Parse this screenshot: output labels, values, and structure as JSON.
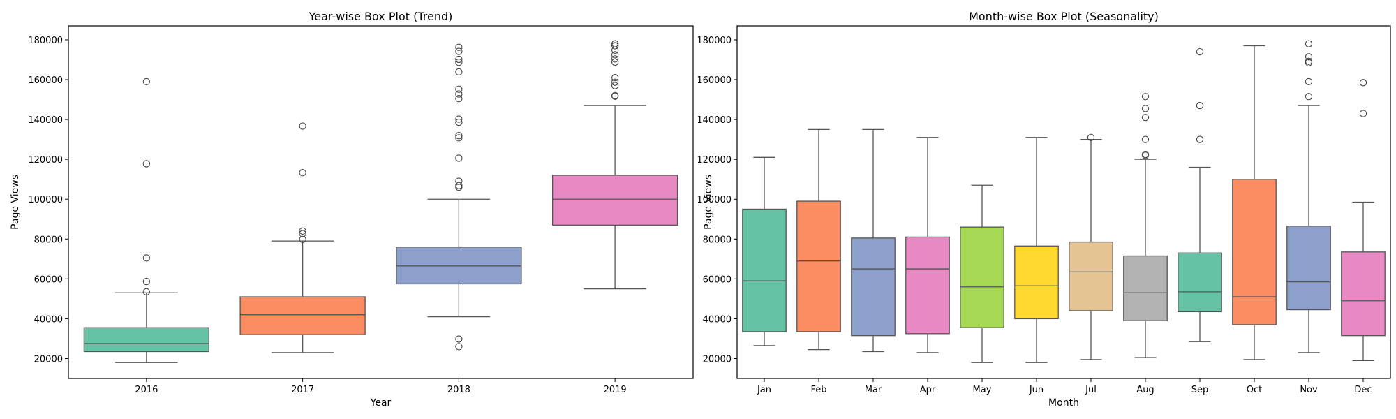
{
  "chart_data": [
    {
      "type": "box",
      "title": "Year-wise Box Plot (Trend)",
      "xlabel": "Year",
      "ylabel": "Page Views",
      "ylim": [
        10000,
        187000
      ],
      "yticks": [
        20000,
        40000,
        60000,
        80000,
        100000,
        120000,
        140000,
        160000,
        180000
      ],
      "ytick_labels": [
        "20000",
        "40000",
        "60000",
        "80000",
        "100000",
        "120000",
        "140000",
        "160000",
        "180000"
      ],
      "categories": [
        "2016",
        "2017",
        "2018",
        "2019"
      ],
      "boxes": [
        {
          "whislo": 18000,
          "q1": 23500,
          "med": 27500,
          "q3": 35500,
          "whishi": 53000,
          "fliers": [
            53500,
            58700,
            70500,
            117800,
            159000
          ],
          "color": "#66c2a5"
        },
        {
          "whislo": 23000,
          "q1": 32000,
          "med": 42000,
          "q3": 51000,
          "whishi": 79000,
          "fliers": [
            79800,
            82700,
            84000,
            113300,
            136700
          ],
          "color": "#fc8d62"
        },
        {
          "whislo": 41000,
          "q1": 57500,
          "med": 66500,
          "q3": 76000,
          "whishi": 100000,
          "fliers": [
            26000,
            29800,
            106000,
            106800,
            109000,
            120600,
            130800,
            131900,
            138600,
            140200,
            150500,
            152800,
            155200,
            163900,
            168700,
            170200,
            174200,
            176200
          ],
          "color": "#8da0cb"
        },
        {
          "whislo": 55000,
          "q1": 87000,
          "med": 100000,
          "q3": 112000,
          "whishi": 147000,
          "fliers": [
            151700,
            152000,
            157000,
            158700,
            161000,
            168800,
            170400,
            172500,
            174800,
            177000,
            178000
          ],
          "color": "#e78ac3"
        }
      ]
    },
    {
      "type": "box",
      "title": "Month-wise Box Plot (Seasonality)",
      "xlabel": "Month",
      "ylabel": "Page Views",
      "ylim": [
        10000,
        187000
      ],
      "yticks": [
        20000,
        40000,
        60000,
        80000,
        100000,
        120000,
        140000,
        160000,
        180000
      ],
      "ytick_labels": [
        "20000",
        "40000",
        "60000",
        "80000",
        "100000",
        "120000",
        "140000",
        "160000",
        "180000"
      ],
      "categories": [
        "Jan",
        "Feb",
        "Mar",
        "Apr",
        "May",
        "Jun",
        "Jul",
        "Aug",
        "Sep",
        "Oct",
        "Nov",
        "Dec"
      ],
      "boxes": [
        {
          "whislo": 26500,
          "q1": 33500,
          "med": 59000,
          "q3": 95000,
          "whishi": 121000,
          "fliers": [],
          "color": "#66c2a5"
        },
        {
          "whislo": 24500,
          "q1": 33500,
          "med": 69000,
          "q3": 99000,
          "whishi": 135000,
          "fliers": [],
          "color": "#fc8d62"
        },
        {
          "whislo": 23500,
          "q1": 31500,
          "med": 65000,
          "q3": 80500,
          "whishi": 135000,
          "fliers": [],
          "color": "#8da0cb"
        },
        {
          "whislo": 23000,
          "q1": 32500,
          "med": 65000,
          "q3": 81000,
          "whishi": 131000,
          "fliers": [],
          "color": "#e78ac3"
        },
        {
          "whislo": 18000,
          "q1": 35500,
          "med": 56000,
          "q3": 86000,
          "whishi": 107000,
          "fliers": [],
          "color": "#a6d854"
        },
        {
          "whislo": 18000,
          "q1": 40000,
          "med": 56500,
          "q3": 76500,
          "whishi": 131000,
          "fliers": [],
          "color": "#ffd92f"
        },
        {
          "whislo": 19500,
          "q1": 44000,
          "med": 63500,
          "q3": 78500,
          "whishi": 130000,
          "fliers": [
            131000
          ],
          "color": "#e5c494"
        },
        {
          "whislo": 20500,
          "q1": 39000,
          "med": 53000,
          "q3": 71500,
          "whishi": 120000,
          "fliers": [
            122000,
            122500,
            130000,
            141000,
            145500,
            151500
          ],
          "color": "#b3b3b3"
        },
        {
          "whislo": 28500,
          "q1": 43500,
          "med": 53500,
          "q3": 73000,
          "whishi": 116000,
          "fliers": [
            130000,
            147000,
            174000
          ],
          "color": "#66c2a5"
        },
        {
          "whislo": 19500,
          "q1": 37000,
          "med": 51000,
          "q3": 110000,
          "whishi": 177000,
          "fliers": [],
          "color": "#fc8d62"
        },
        {
          "whislo": 23000,
          "q1": 44500,
          "med": 58500,
          "q3": 86500,
          "whishi": 147000,
          "fliers": [
            151500,
            159000,
            168500,
            169200,
            171500,
            178000
          ],
          "color": "#8da0cb"
        },
        {
          "whislo": 19000,
          "q1": 31500,
          "med": 49000,
          "q3": 73500,
          "whishi": 98500,
          "fliers": [
            143000,
            158500
          ],
          "color": "#e78ac3"
        }
      ]
    }
  ]
}
